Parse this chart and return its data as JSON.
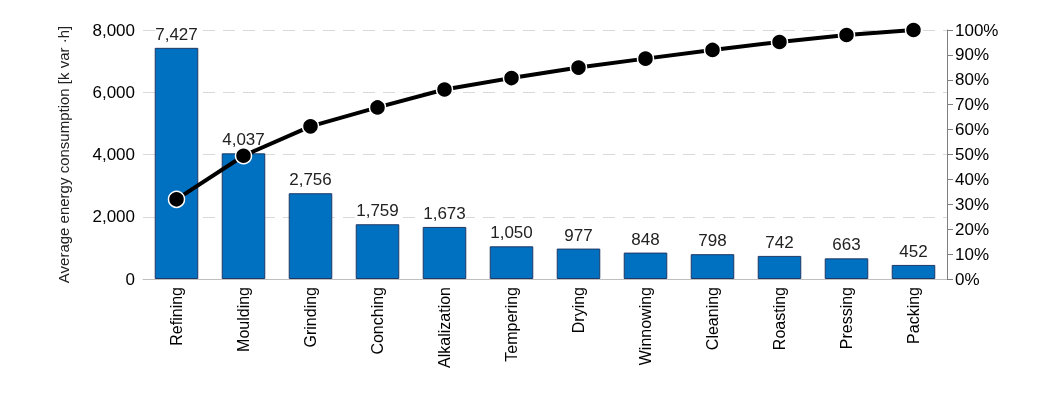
{
  "chart_data": {
    "type": "bar",
    "ylabel": "Average energy consumption [k var ·h]",
    "categories": [
      "Refining",
      "Moulding",
      "Grinding",
      "Conching",
      "Alkalization",
      "Tempering",
      "Drying",
      "Winnowing",
      "Cleaning",
      "Roasting",
      "Pressing",
      "Packing"
    ],
    "series": [
      {
        "color": "#0070c0",
        "values": [
          7427,
          4037,
          2756,
          1759,
          1673,
          1050,
          977,
          848,
          798,
          742,
          663,
          452
        ],
        "value_labels": [
          "7,427",
          "4,037",
          "2,756",
          "1,759",
          "1,673",
          "1,050",
          "977",
          "848",
          "798",
          "742",
          "663",
          "452"
        ]
      },
      {
        "type": "line",
        "axis": "y2",
        "color": "#000000",
        "values": [
          32.0,
          49.5,
          61.3,
          68.9,
          76.1,
          80.7,
          84.9,
          88.5,
          92.0,
          95.2,
          98.0,
          100
        ]
      }
    ],
    "ylim": [
      0,
      8000
    ],
    "yticks": [
      0,
      {
        "value": 2000,
        "label": "2,000"
      },
      {
        "value": 4000,
        "label": "4,000"
      },
      {
        "value": 6000,
        "label": "6,000"
      },
      {
        "value": 8000,
        "label": "8,000"
      }
    ],
    "y2lim": [
      0,
      100
    ],
    "y2ticks": [
      {
        "value": 0,
        "label": "0%"
      },
      {
        "value": 10,
        "label": "10%"
      },
      {
        "value": 20,
        "label": "20%"
      },
      {
        "value": 30,
        "label": "30%"
      },
      {
        "value": 40,
        "label": "40%"
      },
      {
        "value": 50,
        "label": "50%"
      },
      {
        "value": 60,
        "label": "60%"
      },
      {
        "value": 70,
        "label": "70%"
      },
      {
        "value": 80,
        "label": "80%"
      },
      {
        "value": 90,
        "label": "90%"
      },
      {
        "value": 100,
        "label": "100%"
      }
    ],
    "grid": "y",
    "marker": "circle",
    "line_style": "solid"
  }
}
